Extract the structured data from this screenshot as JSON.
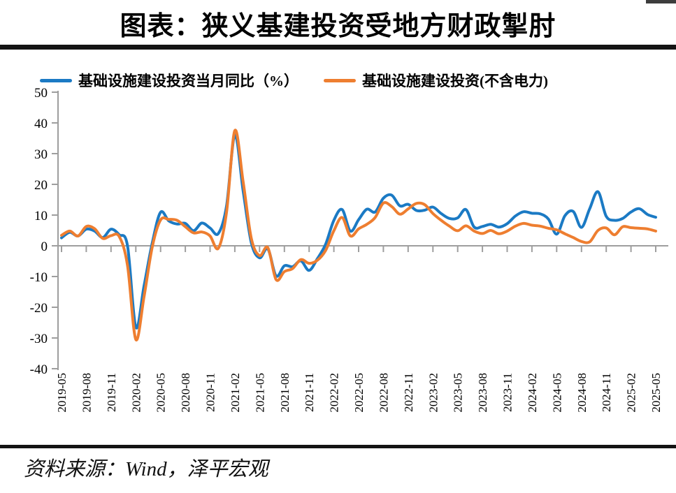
{
  "header": {
    "title": "图表：狭义基建投资受地方财政掣肘"
  },
  "footer": {
    "source_note": "资料来源：Wind，泽平宏观"
  },
  "colors": {
    "series_yoy": "#1b7ac4",
    "series_ex_power": "#ee7e30",
    "axis": "#9e9e9e",
    "divider": "#141414"
  },
  "chart_data": {
    "type": "line",
    "title": "图表：狭义基建投资受地方财政掣肘",
    "x_start": "2019-05",
    "x_end": "2025-05",
    "x_frequency": "monthly",
    "x_tick_labels": [
      "2019-05",
      "2019-08",
      "2019-11",
      "2020-02",
      "2020-05",
      "2020-08",
      "2020-11",
      "2021-02",
      "2021-05",
      "2021-08",
      "2021-11",
      "2022-02",
      "2022-05",
      "2022-08",
      "2022-11",
      "2023-02",
      "2023-05",
      "2023-08",
      "2023-11",
      "2024-02",
      "2024-05",
      "2024-08",
      "2024-11",
      "2025-02",
      "2025-05"
    ],
    "ylim": [
      -40,
      50
    ],
    "y_ticks": [
      50,
      40,
      30,
      20,
      10,
      0,
      -10,
      -20,
      -30,
      -40
    ],
    "grid": false,
    "legend_position": "top",
    "axis_color": "#9e9e9e",
    "series": [
      {
        "name": "基础设施建设投资当月同比（%）",
        "color": "#1b7ac4",
        "values": [
          2.6,
          4.4,
          3.2,
          5.4,
          4.8,
          2.7,
          5.4,
          3.6,
          0.0,
          -26.5,
          -13.0,
          1.0,
          10.9,
          8.1,
          7.1,
          7.3,
          4.9,
          7.4,
          5.8,
          4.0,
          13.0,
          36.0,
          18.0,
          1.0,
          -3.9,
          -1.0,
          -9.8,
          -6.5,
          -6.8,
          -4.9,
          -8.0,
          -4.2,
          0.5,
          8.3,
          11.8,
          4.8,
          8.5,
          11.9,
          11.0,
          15.5,
          16.5,
          13.0,
          13.5,
          11.5,
          11.6,
          12.6,
          10.5,
          8.9,
          9.1,
          11.8,
          6.1,
          6.3,
          7.0,
          6.1,
          7.2,
          9.7,
          11.1,
          10.6,
          10.4,
          8.7,
          3.8,
          9.8,
          11.2,
          6.0,
          12.1,
          17.6,
          9.6,
          8.3,
          8.9,
          11.0,
          12.1,
          10.2,
          9.3
        ]
      },
      {
        "name": "基础设施建设投资(不含电力)",
        "color": "#ee7e30",
        "values": [
          3.4,
          4.8,
          3.2,
          6.3,
          5.6,
          2.4,
          3.3,
          3.0,
          -6.4,
          -30.5,
          -16.5,
          -0.3,
          8.4,
          8.6,
          8.3,
          6.2,
          4.2,
          4.5,
          3.2,
          -0.8,
          11.0,
          37.5,
          21.0,
          2.4,
          -3.2,
          -0.6,
          -11.0,
          -8.4,
          -7.4,
          -4.5,
          -5.7,
          -4.7,
          -1.5,
          4.9,
          9.2,
          3.2,
          5.5,
          7.0,
          9.2,
          13.9,
          12.8,
          10.3,
          12.0,
          13.8,
          13.4,
          10.5,
          8.3,
          6.4,
          4.9,
          6.5,
          4.8,
          4.0,
          5.0,
          3.9,
          4.8,
          6.4,
          7.3,
          6.7,
          6.4,
          5.7,
          5.2,
          3.9,
          2.7,
          1.4,
          1.3,
          5.0,
          5.8,
          3.6,
          6.2,
          5.9,
          5.7,
          5.5,
          4.8
        ]
      }
    ]
  }
}
